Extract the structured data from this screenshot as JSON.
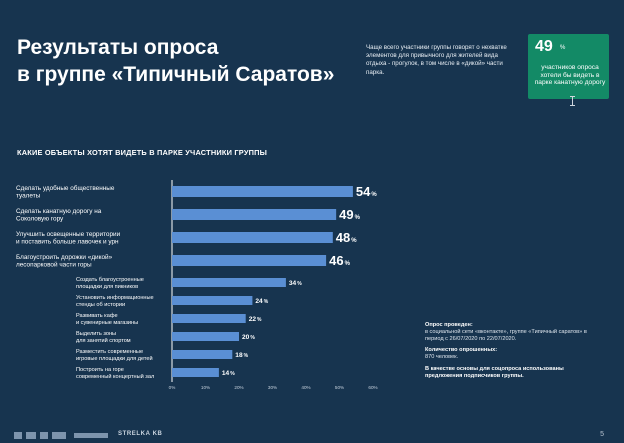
{
  "slide": {
    "title_line1": "Результаты опроса",
    "title_line2": "в группе «Типичный Саратов»",
    "note": "Чаще всего участники группы говорят о нехватке элементов для привычного для жителей вида отдыха - прогулок, в том числе в «дикой» части парка.",
    "callout_value": "49",
    "callout_pct": "%",
    "callout_text": "участников опроса хотели бы видеть в парке канатную дорогу",
    "chart_title": "КАКИЕ ОБЪЕКТЫ ХОТЯТ ВИДЕТЬ В ПАРКЕ УЧАСТНИКИ ГРУППЫ",
    "info_heading": "Опрос проведен:",
    "info_text": "в социальной сети «вконтакте», группе «Типичный саратов» в период с 26/07/2020 по 22/07/2020.",
    "info_count_heading": "Количество опрошенных:",
    "info_count": "870 человек.",
    "info_basis": "В качестве основы для соцопроса использованы предложения подписчиков группы.",
    "footer_brand": "STRELKA KB",
    "page_number": "5"
  },
  "colors": {
    "background": "#17344f",
    "bar": "#5a8fd4",
    "callout": "#138a66",
    "text": "#ffffff"
  },
  "chart_data": {
    "type": "bar",
    "orientation": "horizontal",
    "categories": [
      [
        "Сделать удобные общественные",
        "туалеты"
      ],
      [
        "Сделать канатную дорогу на",
        "Соколовую гору"
      ],
      [
        "Улучшить освещенные территории",
        "и поставить больше лавочек и урн"
      ],
      [
        "Благоустроить дорожки «дикой»",
        "лесопарковой части горы"
      ],
      [
        "Создать благоустроенные",
        "площадки для пикников"
      ],
      [
        "Установить информационные",
        "стенды об истории"
      ],
      [
        "Развивать кафе",
        "и сувенирные магазины"
      ],
      [
        "Выделить зоны",
        "для занятий спортом"
      ],
      [
        "Разместить современные",
        "игровые площадки для детей"
      ],
      [
        "Построить на горе",
        "современный концертный зал"
      ]
    ],
    "values": [
      54,
      49,
      48,
      46,
      34,
      24,
      22,
      20,
      18,
      14
    ],
    "value_labels": [
      "54",
      "49",
      "48",
      "46",
      "34",
      "24",
      "22",
      "20",
      "18",
      "14"
    ],
    "value_suffix": "%",
    "x_ticks": [
      "0%",
      "10%",
      "20%",
      "30%",
      "40%",
      "50%",
      "60%"
    ],
    "xlim": [
      0,
      60
    ],
    "grid": false
  }
}
